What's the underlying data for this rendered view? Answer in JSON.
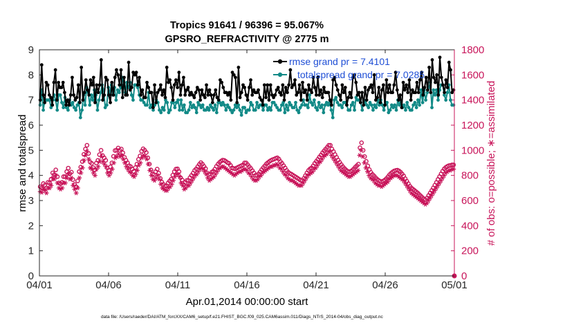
{
  "chart_data": {
    "type": "line",
    "title_line1": "Tropics 91641 / 96396 = 95.067%",
    "title_line2": "GPSRO_REFRACTIVITY @ 2775 m",
    "xlabel": "Apr.01,2014 00:00:00 start",
    "ylabel_left": "rmse and totalspread",
    "ylabel_right": "# of obs: o=possible; ∗=assimilated",
    "x_ticks": [
      "04/01",
      "04/06",
      "04/11",
      "04/16",
      "04/21",
      "04/26",
      "05/01"
    ],
    "x_range_days": [
      0,
      30
    ],
    "ylim_left": [
      0,
      9
    ],
    "ylim_right": [
      0,
      1800
    ],
    "y_ticks_left": [
      "0",
      "1",
      "2",
      "3",
      "4",
      "5",
      "6",
      "7",
      "8",
      "9"
    ],
    "y_ticks_right": [
      "0",
      "200",
      "400",
      "600",
      "800",
      "1000",
      "1200",
      "1400",
      "1600",
      "1800"
    ],
    "footnote": "data file: /Users/raeder/DAI/ATM_forcXX/CAM6_setup/f.e21.FHIST_BGC.f09_025.CAM6assim.011/Diags_NTrS_2014-04/obs_diag_output.nc",
    "colors": {
      "rmse": "#000000",
      "spread": "#128a87",
      "obs": "#c8155a",
      "legend_text": "#1f4fd6"
    },
    "series": [
      {
        "name": "rmse grand pr = 7.4101",
        "axis": "left",
        "values": [
          7.0,
          8.4,
          7.2,
          6.9,
          7.7,
          7.6,
          7.2,
          7.1,
          6.8,
          7.7,
          8.2,
          7.0,
          7.7,
          7.5,
          7.5,
          7.7,
          7.3,
          6.8,
          7.0,
          6.8,
          7.2,
          7.9,
          7.2,
          7.0,
          7.1,
          7.6,
          6.9,
          8.3,
          7.0,
          7.3,
          7.8,
          7.4,
          7.2,
          7.8,
          7.6,
          7.9,
          6.9,
          7.6,
          7.3,
          7.6,
          8.6,
          7.0,
          7.2,
          7.9,
          7.8,
          7.2,
          6.9,
          7.7,
          7.2,
          7.9,
          8.2,
          8.0,
          7.6,
          8.2,
          7.1,
          7.9,
          7.2,
          7.2,
          8.5,
          7.4,
          7.5,
          8.1,
          8.0,
          8.1,
          7.6,
          7.9,
          7.2,
          7.4,
          7.1,
          7.1,
          7.7,
          7.5,
          7.3,
          7.3,
          6.7,
          7.6,
          6.9,
          7.3,
          7.4,
          7.6,
          7.2,
          7.4,
          7.1,
          8.3,
          7.7,
          7.8,
          7.5,
          7.0,
          7.6,
          7.8,
          7.5,
          8.1,
          7.2,
          7.6,
          7.9,
          7.2,
          7.4,
          7.5,
          7.2,
          7.3,
          7.2,
          7.1,
          7.3,
          7.5,
          7.4,
          7.0,
          7.4,
          7.2,
          7.1,
          7.6,
          7.2,
          7.4,
          7.2,
          6.9,
          7.2,
          7.4,
          7.1,
          7.0,
          7.8,
          7.7,
          7.5,
          7.3,
          7.3,
          7.2,
          7.3,
          7.0,
          8.1,
          8.0,
          7.9,
          6.9,
          8.3,
          7.1,
          7.3,
          7.6,
          7.5,
          7.2,
          7.0,
          7.5,
          7.8,
          7.2,
          7.4,
          7.3,
          7.3,
          7.4,
          7.1,
          7.0,
          6.8,
          7.6,
          7.1,
          7.6,
          7.0,
          7.6,
          7.2,
          7.1,
          7.2,
          7.4,
          7.5,
          7.3,
          7.2,
          7.6,
          7.0,
          7.5,
          7.3,
          7.6,
          8.2,
          7.5,
          7.6,
          7.8,
          7.2,
          7.3,
          7.6,
          7.0,
          7.7,
          7.3,
          7.4,
          7.0,
          7.6,
          7.4,
          7.3,
          7.9,
          7.5,
          7.2,
          7.9,
          7.2,
          7.4,
          7.1,
          7.5,
          7.3,
          7.3,
          7.3,
          7.0,
          6.8,
          7.8,
          7.9,
          7.6,
          7.4,
          7.2,
          7.0,
          7.6,
          7.3,
          7.5,
          6.8,
          7.1,
          7.3,
          7.1,
          7.9,
          8.0,
          7.7,
          7.2,
          7.3,
          6.9,
          7.3,
          6.8,
          7.5,
          7.0,
          7.4,
          7.5,
          7.6,
          7.3,
          8.0,
          7.0,
          7.1,
          7.5,
          6.9,
          7.4,
          7.6,
          6.8,
          7.8,
          7.3,
          7.6,
          7.3,
          7.3,
          7.6,
          8.1,
          7.4,
          7.0,
          7.2,
          6.7,
          7.7,
          7.4,
          7.6,
          7.3,
          7.8,
          7.0,
          7.4,
          7.3,
          7.3,
          7.7,
          7.3,
          7.8,
          8.1,
          7.2,
          7.5,
          7.9,
          7.4,
          8.3,
          7.3,
          8.6,
          7.9,
          7.7,
          8.0,
          7.2,
          8.7,
          7.9,
          7.6,
          7.3,
          7.8,
          7.5,
          8.5,
          8.2,
          7.3,
          7.4
        ]
      },
      {
        "name": "totalspread grand pr = 7.0285",
        "axis": "left",
        "values": [
          6.8,
          7.4,
          6.6,
          7.0,
          7.0,
          7.0,
          7.0,
          6.7,
          7.0,
          7.2,
          7.0,
          6.6,
          7.2,
          7.2,
          6.9,
          6.7,
          7.1,
          6.7,
          6.6,
          7.0,
          6.8,
          6.9,
          6.7,
          6.6,
          6.8,
          6.9,
          6.3,
          6.6,
          7.2,
          6.8,
          7.5,
          7.3,
          6.8,
          7.2,
          7.0,
          7.4,
          7.2,
          6.6,
          7.0,
          7.3,
          7.6,
          7.4,
          6.7,
          6.8,
          7.5,
          7.3,
          7.6,
          7.2,
          7.5,
          7.0,
          7.4,
          7.3,
          7.5,
          7.9,
          7.6,
          7.3,
          7.7,
          7.5,
          7.7,
          7.2,
          7.0,
          7.6,
          7.6,
          7.5,
          7.2,
          7.0,
          7.0,
          6.9,
          6.8,
          6.8,
          7.3,
          6.7,
          6.8,
          6.6,
          6.8,
          7.0,
          6.9,
          6.6,
          6.5,
          6.7,
          6.6,
          7.0,
          6.9,
          6.5,
          6.6,
          6.9,
          6.9,
          6.7,
          6.9,
          7.0,
          6.6,
          7.0,
          6.6,
          6.8,
          6.5,
          6.5,
          6.6,
          6.9,
          6.7,
          6.8,
          6.7,
          6.5,
          6.9,
          6.8,
          6.7,
          6.8,
          6.6,
          6.6,
          6.7,
          6.6,
          6.8,
          6.7,
          6.6,
          6.8,
          6.5,
          6.9,
          6.9,
          6.8,
          6.9,
          6.8,
          6.6,
          6.8,
          6.7,
          6.6,
          6.5,
          6.6,
          6.8,
          6.7,
          6.8,
          6.6,
          6.4,
          6.7,
          6.7,
          6.5,
          6.6,
          6.6,
          6.9,
          6.8,
          6.6,
          6.6,
          6.9,
          6.7,
          6.8,
          6.8,
          6.6,
          6.8,
          6.8,
          6.6,
          6.7,
          6.6,
          6.9,
          6.9,
          6.8,
          6.7,
          6.6,
          6.6,
          6.8,
          6.9,
          6.5,
          6.8,
          6.6,
          6.9,
          6.8,
          6.7,
          6.7,
          6.9,
          6.6,
          6.5,
          6.7,
          6.8,
          7.0,
          6.8,
          6.8,
          6.7,
          7.2,
          6.9,
          6.8,
          7.0,
          6.7,
          6.6,
          6.9,
          6.7,
          6.8,
          6.5,
          6.8,
          6.9,
          6.8,
          6.9,
          6.6,
          6.3,
          7.0,
          7.1,
          6.9,
          6.8,
          6.8,
          6.7,
          6.9,
          6.9,
          6.8,
          6.6,
          6.6,
          6.8,
          6.9,
          6.6,
          7.1,
          7.0,
          7.0,
          6.9,
          6.6,
          7.0,
          6.9,
          6.8,
          6.7,
          6.9,
          6.8,
          6.6,
          6.8,
          6.7,
          7.0,
          6.8,
          7.0,
          6.8,
          6.6,
          6.9,
          6.9,
          6.5,
          6.6,
          6.8,
          6.7,
          6.8,
          6.6,
          7.0,
          6.8,
          6.9,
          6.7,
          6.8,
          6.6,
          6.9,
          6.7,
          6.6,
          6.6,
          6.8,
          6.9,
          6.7,
          7.0,
          6.8,
          7.4,
          6.9,
          7.4,
          7.0,
          7.3,
          7.5,
          7.7,
          6.7,
          7.4,
          7.2,
          7.4,
          7.0,
          7.4,
          7.6,
          7.6,
          7.2,
          7.0,
          7.3,
          7.6,
          7.0,
          6.8,
          6.8
        ]
      },
      {
        "name": "obs possible",
        "axis": "right",
        "marker": "o",
        "values": [
          710,
          700,
          735,
          722,
          700,
          745,
          740,
          770,
          820,
          806,
          844,
          790,
          740,
          734,
          745,
          790,
          790,
          830,
          858,
          814,
          826,
          766,
          728,
          710,
          756,
          830,
          866,
          910,
          968,
          1010,
          1040,
          975,
          906,
          896,
          862,
          844,
          898,
          920,
          965,
          1000,
          958,
          940,
          920,
          860,
          840,
          868,
          900,
          952,
          998,
          1000,
          1018,
          1000,
          1010,
          980,
          944,
          920,
          900,
          876,
          870,
          850,
          832,
          862,
          890,
          928,
          955,
          992,
          1012,
          1000,
          982,
          940,
          890,
          844,
          810,
          806,
          830,
          850,
          818,
          776,
          746,
          728,
          715,
          718,
          740,
          755,
          770,
          802,
          830,
          850,
          852,
          830,
          782,
          764,
          726,
          744,
          760,
          760,
          782,
          800,
          818,
          840,
          852,
          870,
          888,
          902,
          890,
          872,
          854,
          820,
          806,
          810,
          826,
          834,
          850,
          872,
          890,
          904,
          914,
          922,
          920,
          912,
          902,
          896,
          880,
          860,
          856,
          852,
          860,
          866,
          872,
          878,
          884,
          900,
          900,
          886,
          870,
          856,
          838,
          820,
          800,
          800,
          812,
          828,
          846,
          862,
          876,
          892,
          902,
          912,
          920,
          926,
          930,
          936,
          940,
          930,
          910,
          896,
          878,
          860,
          840,
          826,
          816,
          810,
          802,
          794,
          786,
          778,
          770,
          760,
          760,
          776,
          798,
          820,
          840,
          852,
          860,
          876,
          896,
          912,
          928,
          946,
          962,
          980,
          996,
          1010,
          1024,
          1040,
          1040,
          1010,
          990,
          966,
          944,
          922,
          904,
          886,
          870,
          856,
          844,
          834,
          828,
          832,
          840,
          852,
          866,
          878,
          890,
          1020,
          1060,
          1000,
          950,
          912,
          876,
          846,
          824,
          808,
          796,
          782,
          770,
          760,
          754,
          750,
          756,
          764,
          776,
          790,
          806,
          818,
          828,
          836,
          840,
          842,
          836,
          826,
          812,
          796,
          774,
          754,
          734,
          714,
          700,
          690,
          680,
          670,
          660,
          648,
          636,
          624,
          612,
          606,
          620,
          640,
          660,
          680,
          700,
          722,
          744,
          768,
          790,
          812,
          834,
          852,
          864,
          872,
          878,
          880,
          884,
          884
        ]
      },
      {
        "name": "obs assimilated",
        "axis": "right",
        "marker": "*",
        "values": [
          670,
          665,
          690,
          680,
          660,
          700,
          700,
          720,
          780,
          770,
          800,
          740,
          700,
          690,
          700,
          740,
          740,
          780,
          810,
          770,
          780,
          720,
          690,
          660,
          700,
          780,
          820,
          860,
          920,
          960,
          990,
          930,
          860,
          850,
          820,
          800,
          850,
          870,
          910,
          950,
          910,
          890,
          870,
          820,
          800,
          820,
          850,
          900,
          940,
          950,
          970,
          950,
          960,
          930,
          900,
          870,
          850,
          830,
          820,
          800,
          790,
          810,
          840,
          880,
          900,
          940,
          960,
          950,
          930,
          890,
          840,
          800,
          770,
          760,
          780,
          800,
          770,
          730,
          700,
          690,
          680,
          680,
          700,
          710,
          730,
          760,
          790,
          810,
          810,
          790,
          740,
          720,
          690,
          700,
          720,
          720,
          740,
          760,
          780,
          800,
          810,
          830,
          850,
          860,
          850,
          830,
          810,
          780,
          760,
          770,
          780,
          790,
          810,
          830,
          850,
          860,
          870,
          870,
          860,
          850,
          840,
          830,
          820,
          810,
          800,
          810,
          820,
          830,
          830,
          840,
          850,
          850,
          840,
          820,
          810,
          790,
          770,
          760,
          760,
          770,
          790,
          800,
          820,
          830,
          840,
          850,
          860,
          870,
          870,
          880,
          880,
          890,
          880,
          860,
          850,
          830,
          810,
          800,
          780,
          770,
          760,
          760,
          750,
          740,
          730,
          720,
          720,
          720,
          740,
          760,
          780,
          800,
          810,
          820,
          830,
          850,
          860,
          880,
          900,
          910,
          930,
          950,
          960,
          970,
          990,
          990,
          960,
          940,
          920,
          900,
          880,
          860,
          840,
          830,
          820,
          810,
          800,
          790,
          790,
          800,
          810,
          820,
          830,
          840,
          960,
          1000,
          950,
          900,
          860,
          830,
          800,
          780,
          770,
          760,
          740,
          730,
          720,
          720,
          710,
          720,
          730,
          740,
          750,
          770,
          780,
          790,
          800,
          800,
          800,
          790,
          780,
          770,
          760,
          740,
          720,
          700,
          680,
          660,
          650,
          640,
          630,
          620,
          610,
          600,
          590,
          580,
          570,
          580,
          600,
          620,
          640,
          660,
          680,
          700,
          720,
          740,
          760,
          780,
          800,
          820,
          830,
          840,
          840,
          850,
          850
        ]
      }
    ]
  }
}
